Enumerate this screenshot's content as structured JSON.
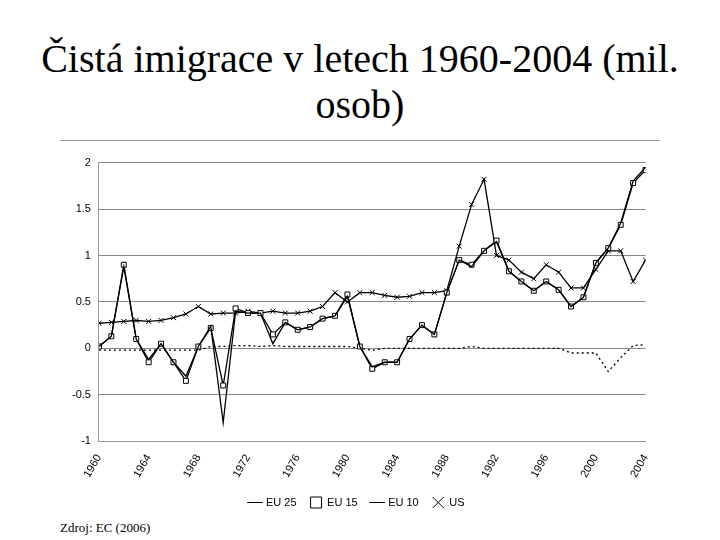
{
  "chart_data": {
    "type": "line",
    "title": "Čistá imigrace v letech 1960-2004 (mil. osob)",
    "annotations": [
      "Zdroj: EC (2006)"
    ],
    "categories": [
      "1960",
      null,
      null,
      null,
      "1964",
      null,
      null,
      null,
      "1968",
      null,
      null,
      null,
      "1972",
      null,
      null,
      null,
      "1976",
      null,
      null,
      null,
      "1980",
      null,
      null,
      null,
      "1984",
      null,
      null,
      null,
      "1988",
      null,
      null,
      null,
      "1992",
      null,
      null,
      null,
      "1996",
      null,
      null,
      null,
      "2000",
      null,
      null,
      null,
      "2004"
    ],
    "series": [
      {
        "name": "EU 25",
        "color": "#000000",
        "marker": "none",
        "line_style": "solid",
        "values": [
          0.02,
          0.13,
          0.88,
          0.1,
          -0.12,
          0.05,
          -0.15,
          -0.3,
          0.02,
          0.24,
          -0.8,
          0.4,
          0.38,
          0.38,
          0.05,
          0.28,
          0.2,
          0.23,
          0.32,
          0.35,
          0.56,
          0.02,
          -0.2,
          -0.15,
          -0.15,
          0.1,
          0.25,
          0.15,
          0.6,
          0.95,
          0.88,
          1.05,
          1.15,
          0.83,
          0.72,
          0.62,
          0.72,
          0.63,
          0.45,
          0.55,
          0.92,
          1.08,
          1.35,
          1.8,
          1.95
        ]
      },
      {
        "name": "EU 15",
        "color": "#000000",
        "marker": "square",
        "line_style": "solid",
        "values": [
          0.02,
          0.13,
          0.9,
          0.1,
          -0.15,
          0.05,
          -0.15,
          -0.35,
          0.02,
          0.22,
          -0.4,
          0.43,
          0.38,
          0.38,
          0.15,
          0.28,
          0.2,
          0.23,
          0.32,
          0.35,
          0.58,
          0.02,
          -0.22,
          -0.15,
          -0.15,
          0.1,
          0.25,
          0.15,
          0.6,
          0.95,
          0.9,
          1.05,
          1.16,
          0.83,
          0.72,
          0.62,
          0.72,
          0.63,
          0.45,
          0.55,
          0.92,
          1.08,
          1.33,
          1.78,
          1.92
        ]
      },
      {
        "name": "EU 10",
        "color": "#000000",
        "marker": "none",
        "line_style": "dotted",
        "values": [
          -0.02,
          -0.02,
          -0.02,
          -0.02,
          -0.02,
          -0.02,
          -0.02,
          -0.02,
          -0.02,
          0.02,
          0.02,
          0.03,
          0.03,
          0.02,
          0.03,
          0.02,
          0.02,
          0.02,
          0.02,
          0.02,
          0.02,
          0.0,
          -0.02,
          0.0,
          0.0,
          0.0,
          0.0,
          0.0,
          0.0,
          0.0,
          0.02,
          0.0,
          0.0,
          0.0,
          0.0,
          0.0,
          0.0,
          0.0,
          -0.05,
          -0.05,
          -0.05,
          -0.25,
          -0.1,
          0.03,
          0.04
        ]
      },
      {
        "name": "US",
        "color": "#000000",
        "marker": "x",
        "line_style": "solid",
        "values": [
          0.27,
          0.28,
          0.29,
          0.3,
          0.29,
          0.3,
          0.33,
          0.37,
          0.45,
          0.37,
          0.38,
          0.38,
          0.4,
          0.38,
          0.4,
          0.38,
          0.38,
          0.4,
          0.45,
          0.6,
          0.5,
          0.6,
          0.6,
          0.57,
          0.55,
          0.56,
          0.6,
          0.6,
          0.62,
          1.1,
          1.55,
          1.82,
          1.0,
          0.95,
          0.82,
          0.75,
          0.9,
          0.82,
          0.65,
          0.65,
          0.85,
          1.05,
          1.05,
          0.72,
          0.95
        ]
      }
    ],
    "ylim": [
      -1,
      2
    ],
    "yticks": [
      -1,
      -0.5,
      0,
      0.5,
      1,
      1.5,
      2
    ],
    "grid": true,
    "legend": "bottom"
  }
}
